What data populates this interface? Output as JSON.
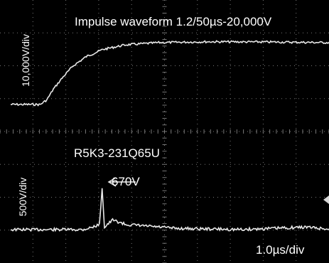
{
  "chart_data": {
    "type": "line",
    "title": "Impulse waveform 1.2/50µs-20,000V",
    "xlabel": "1.0µs/div",
    "x_units_per_div_us": 1.0,
    "grid": true,
    "upper_trace": {
      "ylabel": "10,000V/div",
      "y_units_per_div_v": 10000,
      "description_peak_v": 20000,
      "points_us_v": [
        [
          0,
          0
        ],
        [
          0.9,
          0
        ],
        [
          1.1,
          1500
        ],
        [
          1.3,
          5000
        ],
        [
          1.6,
          9000
        ],
        [
          1.9,
          12500
        ],
        [
          2.3,
          15500
        ],
        [
          2.8,
          17800
        ],
        [
          3.5,
          19300
        ],
        [
          4.5,
          20000
        ],
        [
          6,
          20300
        ],
        [
          8,
          20200
        ],
        [
          9.8,
          20000
        ]
      ]
    },
    "lower_trace": {
      "label": "R5K3-231Q65U",
      "ylabel": "500V/div",
      "y_units_per_div_v": 500,
      "peak_annotation": "670V",
      "peak_v": 670,
      "points_us_v": [
        [
          0,
          0
        ],
        [
          2.2,
          0
        ],
        [
          2.5,
          40
        ],
        [
          2.7,
          80
        ],
        [
          2.78,
          670
        ],
        [
          2.85,
          40
        ],
        [
          3.1,
          150
        ],
        [
          3.5,
          80
        ],
        [
          5,
          20
        ],
        [
          7,
          0
        ],
        [
          9,
          40
        ],
        [
          9.8,
          0
        ]
      ]
    }
  },
  "colors": {
    "background": "#000000",
    "grid": "#777777",
    "trace": "#e8e8e8",
    "marker": "#d8d8d8"
  }
}
